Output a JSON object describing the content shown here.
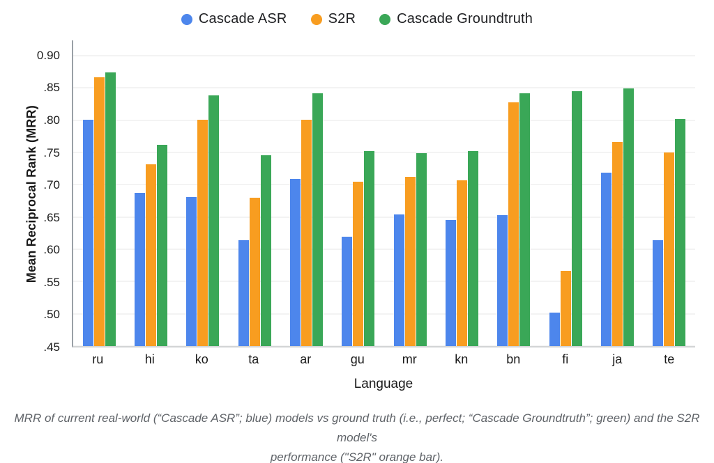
{
  "chart_data": {
    "type": "bar",
    "xlabel": "Language",
    "ylabel": "Mean Reciprocal Rank (MRR)",
    "categories": [
      "ru",
      "hi",
      "ko",
      "ta",
      "ar",
      "gu",
      "mr",
      "kn",
      "bn",
      "fi",
      "ja",
      "te"
    ],
    "series": [
      {
        "name": "Cascade ASR",
        "color": "#4d86ec",
        "values": [
          0.801,
          0.687,
          0.681,
          0.614,
          0.709,
          0.619,
          0.654,
          0.645,
          0.653,
          0.502,
          0.719,
          0.614
        ]
      },
      {
        "name": "S2R",
        "color": "#f89d20",
        "values": [
          0.866,
          0.731,
          0.801,
          0.68,
          0.801,
          0.705,
          0.712,
          0.707,
          0.827,
          0.567,
          0.766,
          0.75
        ]
      },
      {
        "name": "Cascade Groundtruth",
        "color": "#3aa757",
        "values": [
          0.874,
          0.762,
          0.838,
          0.746,
          0.842,
          0.752,
          0.749,
          0.752,
          0.842,
          0.845,
          0.849,
          0.802
        ]
      }
    ],
    "ylim": [
      0.45,
      0.9
    ],
    "yticks": [
      {
        "value": 0.9,
        "label": "0.90"
      },
      {
        "value": 0.85,
        "label": ".85"
      },
      {
        "value": 0.8,
        "label": ".80"
      },
      {
        "value": 0.75,
        "label": ".75"
      },
      {
        "value": 0.7,
        "label": ".70"
      },
      {
        "value": 0.65,
        "label": ".65"
      },
      {
        "value": 0.6,
        "label": ".60"
      },
      {
        "value": 0.55,
        "label": ".55"
      },
      {
        "value": 0.5,
        "label": ".50"
      },
      {
        "value": 0.45,
        "label": ".45"
      }
    ],
    "grid": true,
    "legend_position": "top"
  },
  "caption": {
    "line1": "MRR of current real-world (“Cascade ASR”; blue) models vs ground truth (i.e., perfect; “Cascade Groundtruth”; green) and the S2R model's",
    "line2": "performance (\"S2R\" orange bar)."
  }
}
